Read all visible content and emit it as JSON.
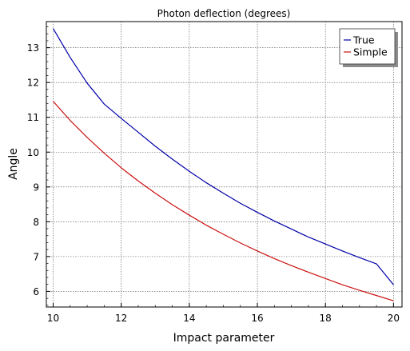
{
  "chart_data": {
    "type": "line",
    "title": "Photon deflection (degrees)",
    "xlabel": "Impact parameter",
    "ylabel": "Angle",
    "xlim": [
      9.8,
      20.25
    ],
    "ylim": [
      5.55,
      13.75
    ],
    "xticks": [
      10,
      12,
      14,
      16,
      18,
      20
    ],
    "yticks": [
      6,
      7,
      8,
      9,
      10,
      11,
      12,
      13
    ],
    "grid": true,
    "legend_position": "top-right",
    "x": [
      10,
      10.5,
      11,
      11.5,
      12,
      12.5,
      13,
      13.5,
      14,
      14.5,
      15,
      15.5,
      16,
      16.5,
      17,
      17.5,
      18,
      18.5,
      19,
      19.5,
      20
    ],
    "series": [
      {
        "name": "True",
        "color": "#0000aa",
        "values": [
          13.55,
          12.72,
          11.98,
          11.38,
          10.97,
          10.57,
          10.17,
          9.8,
          9.45,
          9.12,
          8.82,
          8.53,
          8.27,
          8.02,
          7.79,
          7.56,
          7.36,
          7.16,
          6.97,
          6.79,
          6.19
        ]
      },
      {
        "name": "Simple",
        "color": "#cc1111",
        "values": [
          11.46,
          10.91,
          10.42,
          9.97,
          9.55,
          9.17,
          8.82,
          8.49,
          8.19,
          7.9,
          7.64,
          7.39,
          7.16,
          6.94,
          6.74,
          6.55,
          6.37,
          6.19,
          6.03,
          5.88,
          5.73
        ]
      }
    ]
  }
}
